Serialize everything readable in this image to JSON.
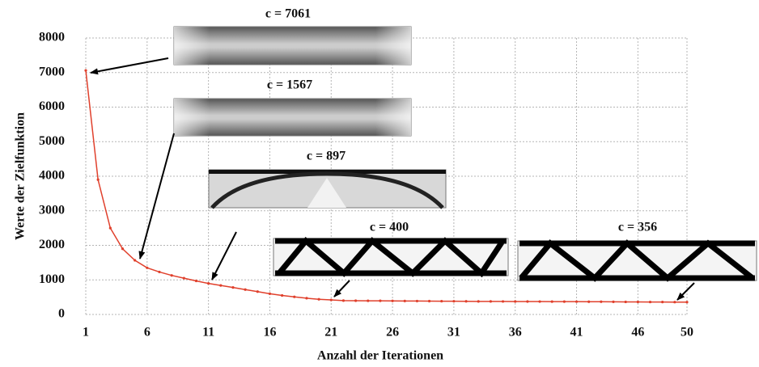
{
  "chart_data": {
    "type": "line",
    "x_label": "Anzahl der Iterationen",
    "y_label": "Werte der Zielfunktion",
    "x": [
      1,
      2,
      3,
      4,
      5,
      6,
      7,
      8,
      9,
      10,
      11,
      12,
      13,
      14,
      15,
      16,
      17,
      18,
      19,
      20,
      21,
      22,
      23,
      24,
      25,
      26,
      27,
      28,
      29,
      30,
      31,
      32,
      33,
      34,
      35,
      36,
      37,
      38,
      39,
      40,
      41,
      42,
      43,
      44,
      45,
      46,
      47,
      48,
      49,
      50
    ],
    "series": [
      {
        "color": "#e0402c",
        "values": [
          7061,
          3900,
          2500,
          1900,
          1567,
          1350,
          1230,
          1130,
          1050,
          970,
          897,
          840,
          780,
          720,
          660,
          600,
          550,
          510,
          470,
          440,
          420,
          400,
          398,
          396,
          394,
          392,
          390,
          388,
          386,
          384,
          382,
          380,
          378,
          377,
          376,
          375,
          374,
          373,
          372,
          371,
          370,
          369,
          368,
          366,
          364,
          362,
          361,
          360,
          358,
          356
        ]
      }
    ],
    "xlim": [
      1,
      50
    ],
    "xticks": [
      1,
      6,
      11,
      16,
      21,
      26,
      31,
      36,
      41,
      46,
      50
    ],
    "ylim": [
      0,
      8000
    ],
    "yticks": [
      0,
      1000,
      2000,
      3000,
      4000,
      5000,
      6000,
      7000,
      8000
    ],
    "grid": true,
    "annotations": [
      "c = 7061",
      "c = 1567",
      "c = 897",
      "c = 400",
      "c = 356"
    ]
  }
}
